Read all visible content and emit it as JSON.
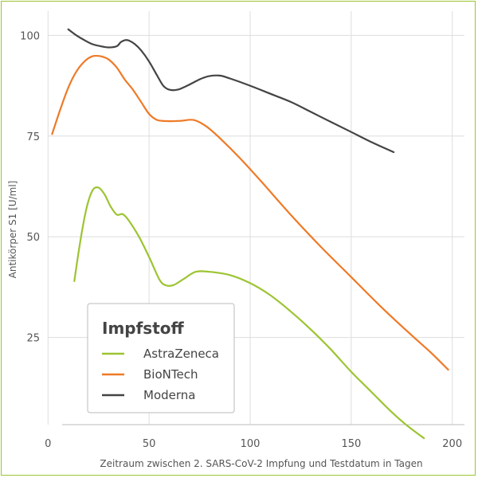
{
  "chart_data": {
    "type": "line",
    "title": "",
    "xlabel": "Zeitraum zwischen 2. SARS-CoV-2 Impfung und Testdatum in Tagen",
    "ylabel": "Antikörper S1 [U/ml]",
    "xlim": [
      -8,
      208
    ],
    "ylim": [
      2,
      106
    ],
    "x_ticks": [
      0,
      50,
      100,
      150,
      200
    ],
    "y_ticks": [
      25,
      50,
      75,
      100
    ],
    "grid": true,
    "legend_title": "Impfstoff",
    "legend_position": "bottom-left",
    "series": [
      {
        "name": "AstraZeneca",
        "color": "#9dc432",
        "points": [
          [
            13,
            39
          ],
          [
            16,
            49
          ],
          [
            19,
            57
          ],
          [
            22,
            61.5
          ],
          [
            25,
            62.2
          ],
          [
            28,
            60.5
          ],
          [
            31,
            57.5
          ],
          [
            34,
            55.5
          ],
          [
            37,
            55.6
          ],
          [
            40,
            54
          ],
          [
            45,
            50
          ],
          [
            50,
            45
          ],
          [
            55,
            39.5
          ],
          [
            58,
            38
          ],
          [
            62,
            38
          ],
          [
            67,
            39.5
          ],
          [
            73,
            41.3
          ],
          [
            80,
            41.3
          ],
          [
            90,
            40.5
          ],
          [
            100,
            38.5
          ],
          [
            110,
            35.5
          ],
          [
            120,
            31.5
          ],
          [
            130,
            27
          ],
          [
            140,
            22
          ],
          [
            150,
            16.5
          ],
          [
            160,
            11.5
          ],
          [
            170,
            6.5
          ],
          [
            178,
            3
          ],
          [
            186,
            0
          ]
        ]
      },
      {
        "name": "BioNTech",
        "color": "#ee7a27",
        "points": [
          [
            2,
            75.5
          ],
          [
            6,
            81.5
          ],
          [
            10,
            87
          ],
          [
            14,
            91
          ],
          [
            18,
            93.5
          ],
          [
            22,
            94.8
          ],
          [
            26,
            94.8
          ],
          [
            30,
            94
          ],
          [
            34,
            92
          ],
          [
            38,
            89
          ],
          [
            42,
            86.5
          ],
          [
            46,
            83.5
          ],
          [
            50,
            80.5
          ],
          [
            54,
            79
          ],
          [
            60,
            78.7
          ],
          [
            66,
            78.8
          ],
          [
            72,
            79
          ],
          [
            78,
            77.5
          ],
          [
            85,
            74.5
          ],
          [
            95,
            69.5
          ],
          [
            105,
            64
          ],
          [
            120,
            55.5
          ],
          [
            135,
            47.5
          ],
          [
            150,
            40
          ],
          [
            165,
            32.5
          ],
          [
            180,
            25.5
          ],
          [
            190,
            21
          ],
          [
            198,
            17
          ]
        ]
      },
      {
        "name": "Moderna",
        "color": "#444444",
        "points": [
          [
            10,
            101.5
          ],
          [
            14,
            100
          ],
          [
            18,
            98.8
          ],
          [
            22,
            97.8
          ],
          [
            26,
            97.3
          ],
          [
            30,
            97
          ],
          [
            34,
            97.3
          ],
          [
            36,
            98.3
          ],
          [
            38,
            98.8
          ],
          [
            40,
            98.7
          ],
          [
            43,
            97.8
          ],
          [
            46,
            96.3
          ],
          [
            50,
            93.5
          ],
          [
            54,
            90
          ],
          [
            57,
            87.5
          ],
          [
            60,
            86.5
          ],
          [
            64,
            86.5
          ],
          [
            68,
            87.3
          ],
          [
            72,
            88.3
          ],
          [
            76,
            89.3
          ],
          [
            80,
            89.9
          ],
          [
            85,
            90
          ],
          [
            90,
            89.3
          ],
          [
            100,
            87.5
          ],
          [
            110,
            85.5
          ],
          [
            120,
            83.5
          ],
          [
            130,
            81
          ],
          [
            140,
            78.5
          ],
          [
            150,
            76
          ],
          [
            160,
            73.5
          ],
          [
            171,
            71
          ]
        ]
      }
    ]
  }
}
